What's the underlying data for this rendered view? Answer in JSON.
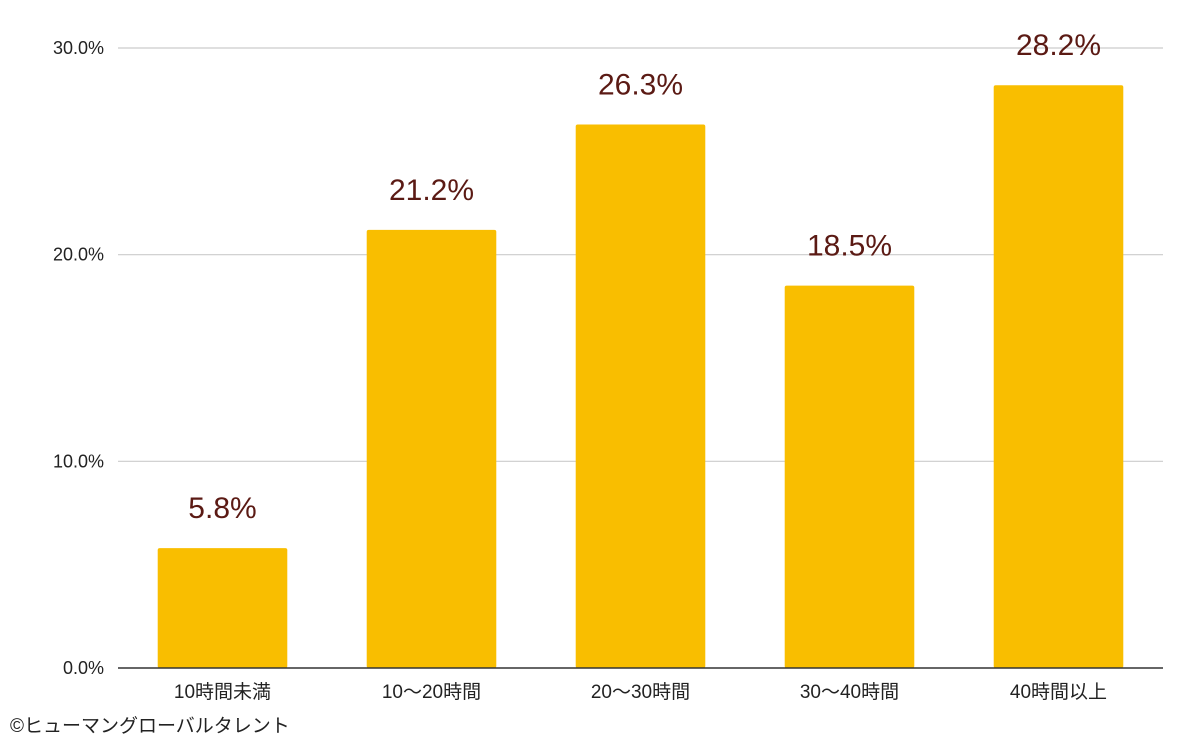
{
  "chart_data": {
    "type": "bar",
    "categories": [
      "10時間未満",
      "10〜20時間",
      "20〜30時間",
      "30〜40時間",
      "40時間以上"
    ],
    "values": [
      5.8,
      21.2,
      26.3,
      18.5,
      28.2
    ],
    "data_labels": [
      "5.8%",
      "21.2%",
      "26.3%",
      "18.5%",
      "28.2%"
    ],
    "title": "",
    "xlabel": "",
    "ylabel": "",
    "ylim": [
      0,
      30
    ],
    "yticks": [
      0,
      10,
      20,
      30
    ],
    "ytick_labels": [
      "0.0%",
      "10.0%",
      "20.0%",
      "30.0%"
    ],
    "grid": true,
    "bar_color": "#F9BE00",
    "label_color": "#5B1A14"
  },
  "credit": "©ヒューマングローバルタレント"
}
